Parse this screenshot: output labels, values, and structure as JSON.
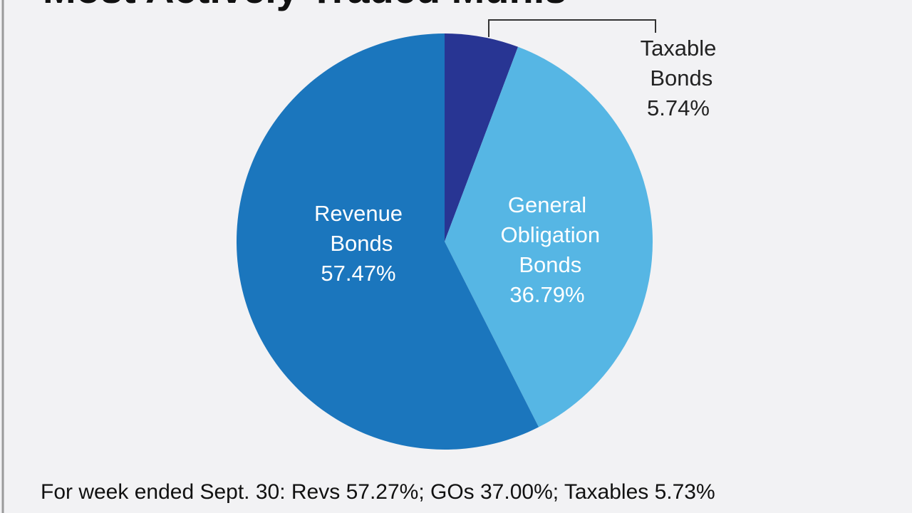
{
  "chart_data": {
    "type": "pie",
    "title": "Most Actively Traded Munis",
    "categories": [
      "Taxable Bonds",
      "General Obligation Bonds",
      "Revenue Bonds"
    ],
    "values": [
      5.74,
      36.79,
      57.47
    ],
    "value_labels": [
      "5.74%",
      "36.79%",
      "57.47%"
    ],
    "colors": [
      "#283593",
      "#56b6e4",
      "#1b76bd"
    ],
    "note": "For week ended Sept. 30: Revs 57.27%; GOs 37.00%; Taxables 5.73%"
  }
}
